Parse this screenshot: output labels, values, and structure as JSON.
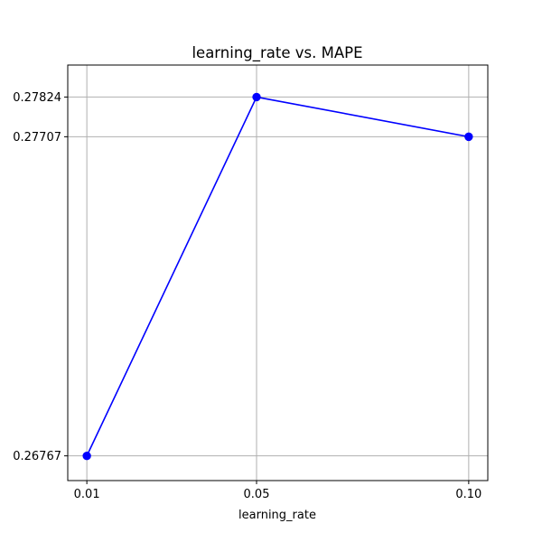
{
  "chart_data": {
    "type": "line",
    "title": "learning_rate vs. MAPE",
    "xlabel": "learning_rate",
    "ylabel": "",
    "x": [
      0.01,
      0.05,
      0.1
    ],
    "x_tick_labels": [
      "0.01",
      "0.05",
      "0.10"
    ],
    "series": [
      {
        "values": [
          0.26767,
          0.27824,
          0.27707
        ]
      }
    ],
    "y_ticks": [
      0.26767,
      0.27707,
      0.27824
    ],
    "y_tick_labels": [
      "0.26767",
      "0.27707",
      "0.27824"
    ],
    "xlim": [
      0.0055,
      0.1045
    ],
    "ylim": [
      0.266942,
      0.279182
    ],
    "grid": true,
    "marker": "circle",
    "colors": {
      "line": "#0000ff",
      "marker": "#0000ff",
      "grid": "#b0b0b0",
      "axes": "#000000"
    }
  }
}
